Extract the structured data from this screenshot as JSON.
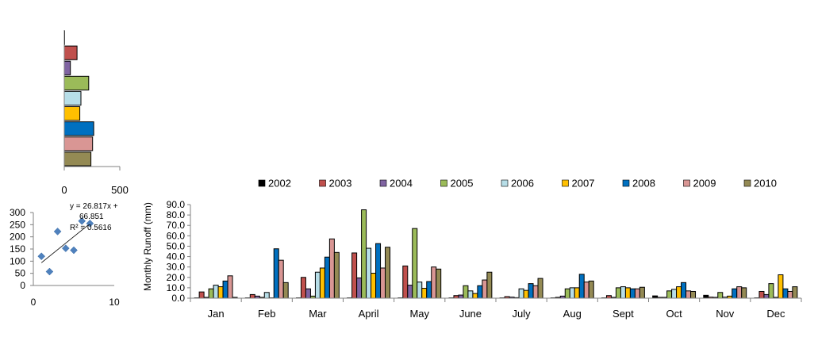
{
  "chart_data": [
    {
      "type": "bar",
      "orientation": "horizontal",
      "categories": [
        "2002",
        "2003",
        "2004",
        "2005",
        "2006",
        "2007",
        "2008",
        "2009",
        "2010"
      ],
      "values": [
        2,
        115,
        55,
        220,
        150,
        140,
        265,
        255,
        240
      ],
      "xlim": [
        0,
        500
      ],
      "xticks": [
        "0",
        "500"
      ]
    },
    {
      "type": "scatter",
      "points": [
        {
          "x": 1,
          "y": 120
        },
        {
          "x": 2,
          "y": 57
        },
        {
          "x": 3,
          "y": 222
        },
        {
          "x": 4,
          "y": 153
        },
        {
          "x": 5,
          "y": 145
        },
        {
          "x": 6,
          "y": 265
        },
        {
          "x": 7,
          "y": 255
        }
      ],
      "xlim": [
        0,
        10
      ],
      "ylim": [
        0,
        300
      ],
      "xticks": [
        "0",
        "10"
      ],
      "yticks": [
        "0",
        "50",
        "100",
        "150",
        "200",
        "250",
        "300"
      ],
      "trendline": {
        "slope": 26.817,
        "intercept": 66.851
      },
      "annotation_lines": [
        "y = 26.817x +",
        "66.851",
        "R² = 0.5616"
      ]
    },
    {
      "type": "bar",
      "ylabel": "Monthly  Runoff (mm)",
      "ylim": [
        0,
        90
      ],
      "yticks": [
        "0.0",
        "10.0",
        "20.0",
        "30.0",
        "40.0",
        "50.0",
        "60.0",
        "70.0",
        "80.0",
        "90.0"
      ],
      "categories": [
        "Jan",
        "Feb",
        "Mar",
        "April",
        "May",
        "June",
        "July",
        "Aug",
        "Sept",
        "Oct",
        "Nov",
        "Dec"
      ],
      "legend_position": "top",
      "series": [
        {
          "name": "2002",
          "color": "#000000",
          "values": [
            0.3,
            0.3,
            0.3,
            0.3,
            0.3,
            0.3,
            0.3,
            0.3,
            0.3,
            2.2,
            2.8,
            0.3
          ]
        },
        {
          "name": "2003",
          "color": "#C0504D",
          "values": [
            6.0,
            3.5,
            20.0,
            43.5,
            31.0,
            2.5,
            1.5,
            0.8,
            2.5,
            0.8,
            1.0,
            6.5
          ]
        },
        {
          "name": "2004",
          "color": "#8064A2",
          "values": [
            0.8,
            2.0,
            9.0,
            19.5,
            12.5,
            3.0,
            1.0,
            2.0,
            0.8,
            0.8,
            0.8,
            3.5
          ]
        },
        {
          "name": "2005",
          "color": "#9BBB59",
          "values": [
            9.0,
            0.8,
            2.0,
            85.0,
            67.0,
            12.0,
            0.5,
            9.0,
            10.0,
            7.0,
            5.5,
            14.0
          ]
        },
        {
          "name": "2006",
          "color": "#B7DEE8",
          "values": [
            12.5,
            5.5,
            25.0,
            48.0,
            15.5,
            7.0,
            9.0,
            10.0,
            11.0,
            8.5,
            1.0,
            0.8
          ]
        },
        {
          "name": "2007",
          "color": "#FFC000",
          "values": [
            11.0,
            0.3,
            29.0,
            24.0,
            9.5,
            4.5,
            7.5,
            10.0,
            10.0,
            11.0,
            2.0,
            22.5
          ]
        },
        {
          "name": "2008",
          "color": "#0070C0",
          "values": [
            16.5,
            47.5,
            39.5,
            52.5,
            16.0,
            12.0,
            14.0,
            23.0,
            9.0,
            15.0,
            9.0,
            9.0
          ]
        },
        {
          "name": "2009",
          "color": "#D99694",
          "values": [
            21.5,
            36.5,
            57.0,
            29.0,
            30.0,
            17.5,
            12.0,
            15.5,
            9.0,
            7.0,
            11.0,
            6.5
          ]
        },
        {
          "name": "2010",
          "color": "#948A54",
          "values": [
            0.8,
            15.0,
            44.0,
            49.0,
            28.0,
            25.0,
            19.0,
            16.5,
            10.5,
            6.5,
            10.0,
            11.0
          ]
        }
      ]
    }
  ]
}
